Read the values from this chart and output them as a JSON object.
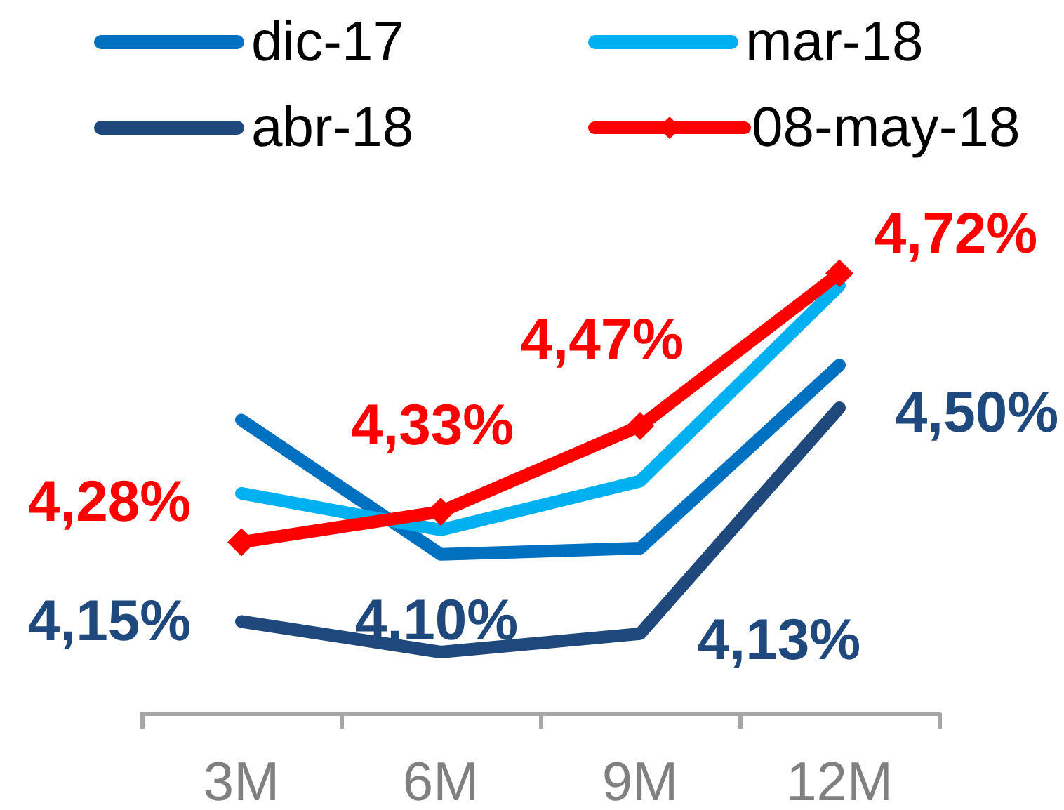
{
  "chart_data": {
    "type": "line",
    "categories": [
      "3M",
      "6M",
      "9M",
      "12M"
    ],
    "series": [
      {
        "name": "dic-17",
        "color": "#0070c0",
        "values": [
          4.48,
          4.26,
          4.27,
          4.57
        ]
      },
      {
        "name": "mar-18",
        "color": "#00b0f0",
        "values": [
          4.36,
          4.3,
          4.38,
          4.7
        ]
      },
      {
        "name": "abr-18",
        "color": "#1f497d",
        "values": [
          4.15,
          4.1,
          4.13,
          4.5
        ],
        "value_labels": [
          "4,15%",
          "4,10%",
          "4,13%",
          "4,50%"
        ]
      },
      {
        "name": "08-may-18",
        "color": "#ff0000",
        "values": [
          4.28,
          4.33,
          4.47,
          4.72
        ],
        "value_labels": [
          "4,28%",
          "4,33%",
          "4,47%",
          "4,72%"
        ],
        "marker": "diamond"
      }
    ],
    "tick_labels": "x",
    "legend": "top",
    "marker": "none",
    "line_style": "solid"
  }
}
